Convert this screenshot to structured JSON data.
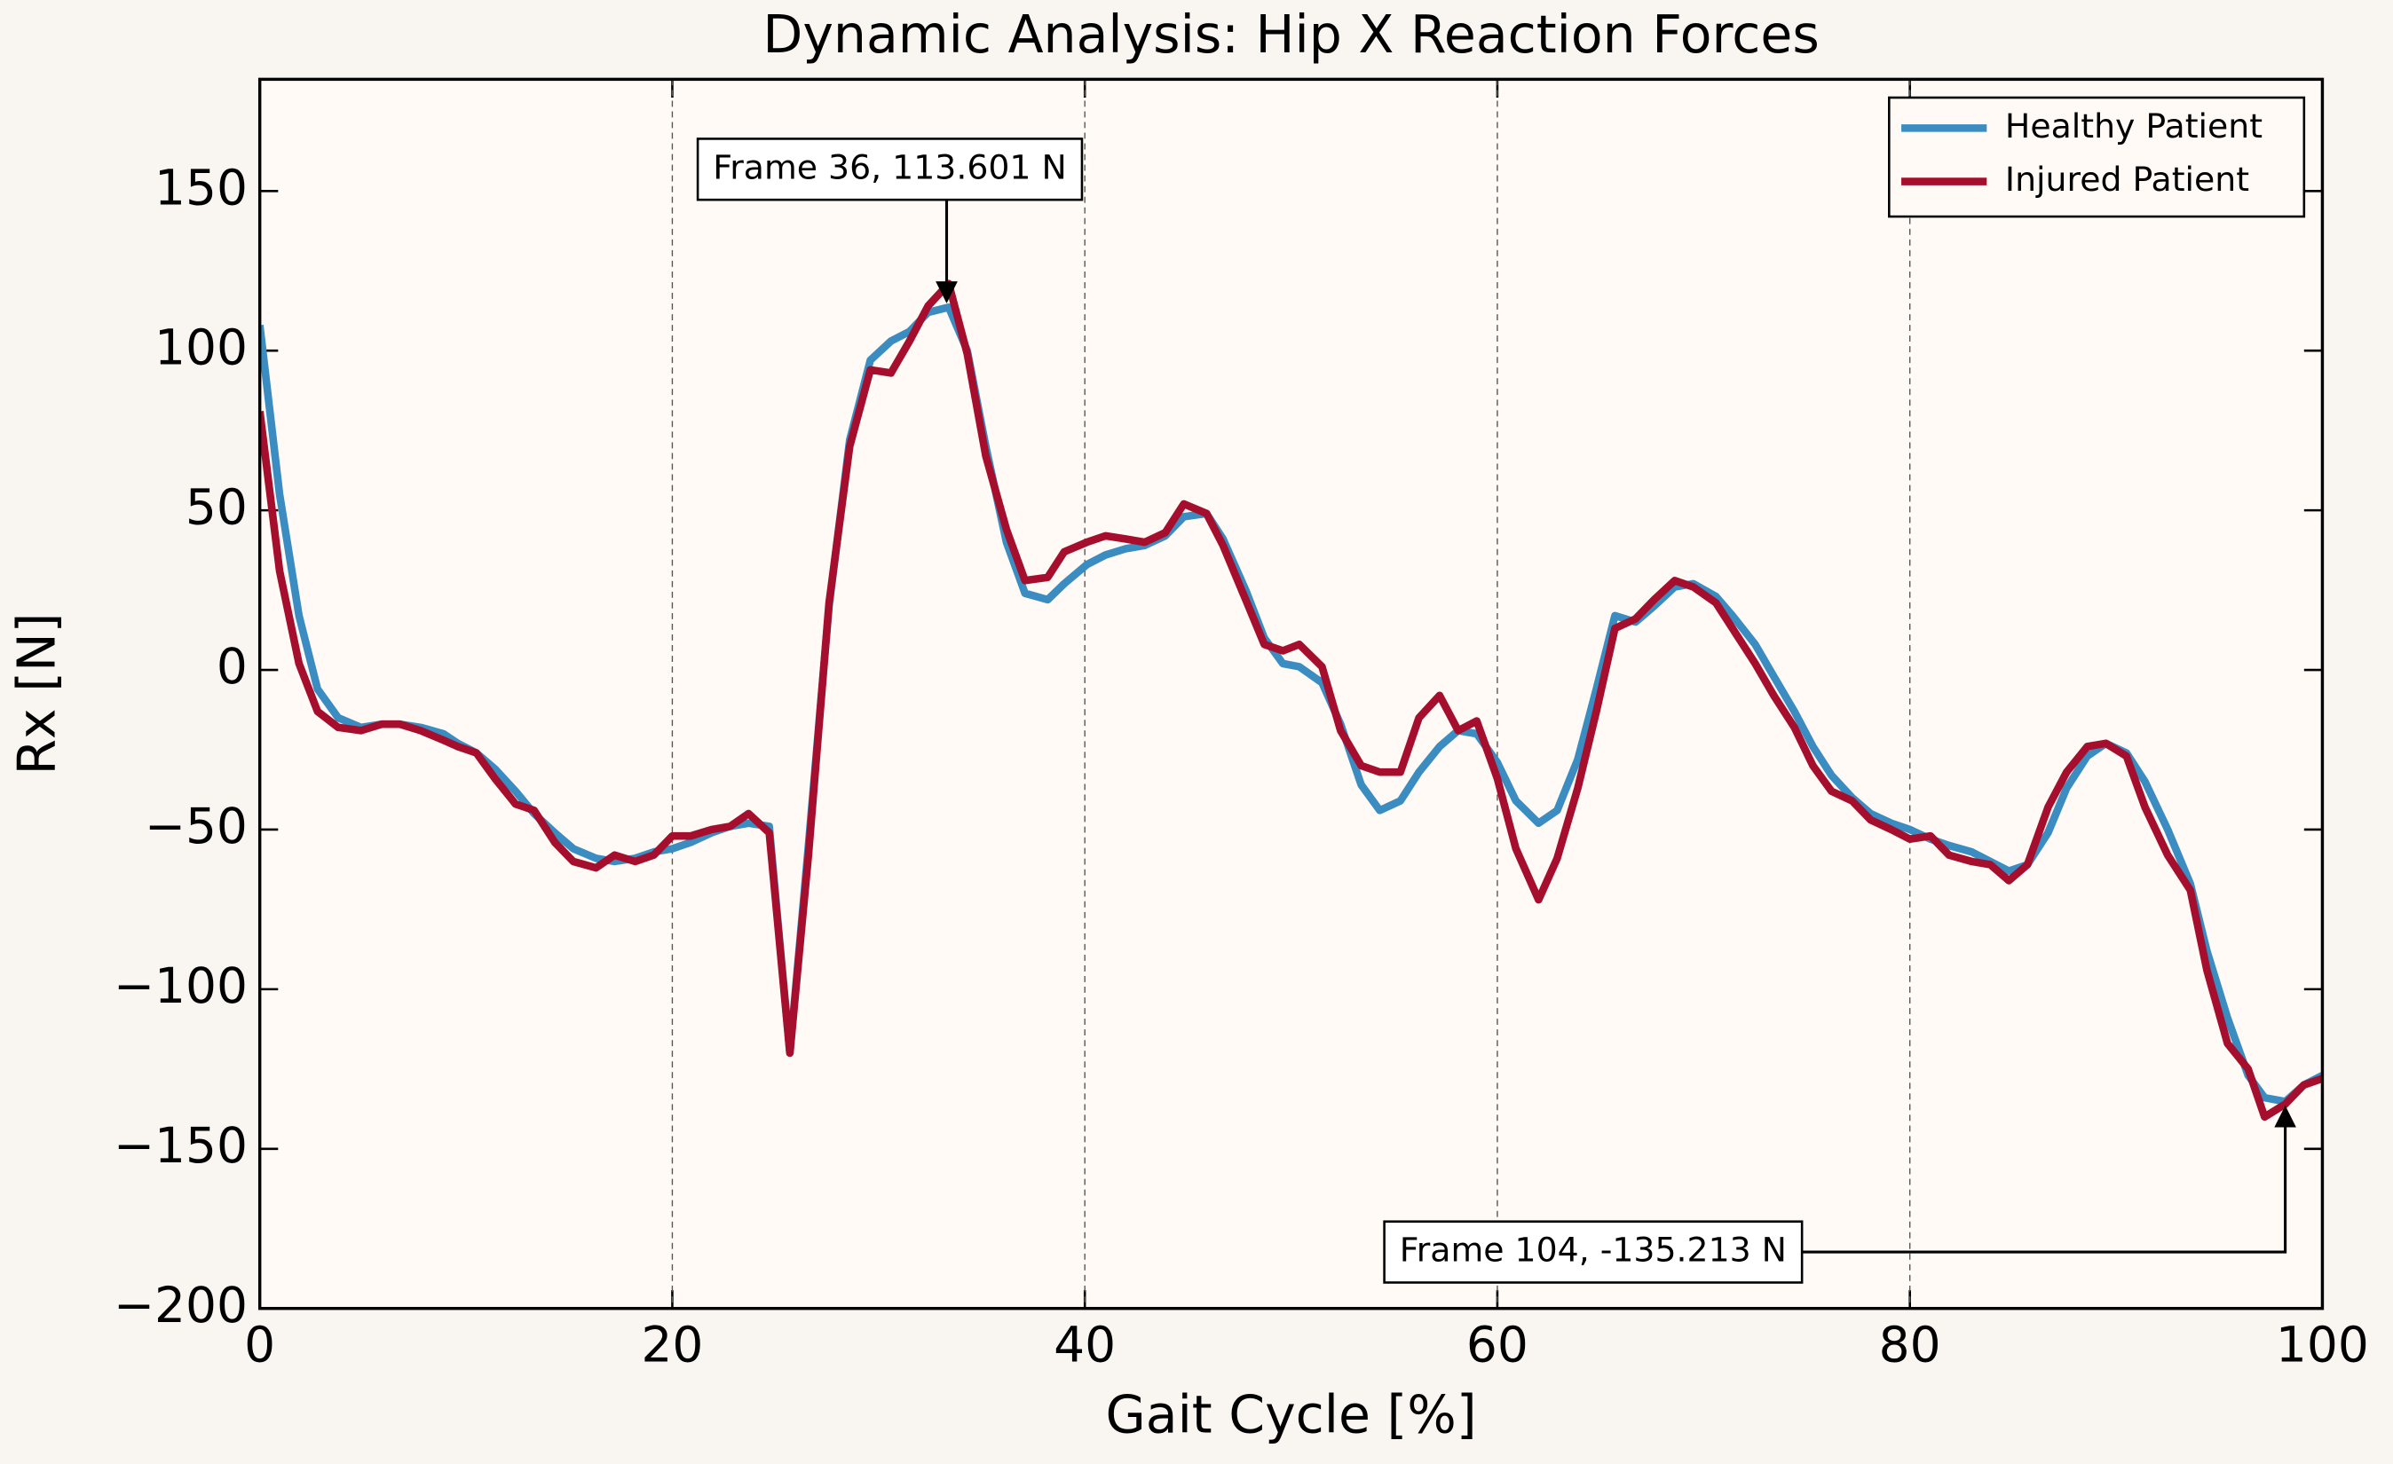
{
  "chart_data": {
    "type": "line",
    "title": "Dynamic Analysis: Hip X Reaction Forces",
    "xlabel": "Gait Cycle [%]",
    "ylabel": "Rx [N]",
    "x": [
      0,
      0.96,
      1.9,
      2.8,
      3.8,
      4.9,
      5.9,
      6.8,
      7.8,
      8.9,
      9.6,
      10.5,
      11.4,
      12.4,
      13.3,
      14.3,
      15.2,
      16.3,
      17.2,
      18.2,
      19.1,
      20,
      20.9,
      21.9,
      22.8,
      23.7,
      24.7,
      25.7,
      26.6,
      27.6,
      28.6,
      29.6,
      30.6,
      31.5,
      32.4,
      33.4,
      34.3,
      35.2,
      36.2,
      37.1,
      38.2,
      39,
      40.1,
      41,
      42,
      42.9,
      43.9,
      44.8,
      45.9,
      46.7,
      47.8,
      48.7,
      49.6,
      50.4,
      51.5,
      52.4,
      53.4,
      54.3,
      55.3,
      56.2,
      57.2,
      58.1,
      59,
      60,
      60.9,
      62,
      62.9,
      63.9,
      64.8,
      65.7,
      66.7,
      67.6,
      68.6,
      69.5,
      70.6,
      71.4,
      72.5,
      73.4,
      74.4,
      75.3,
      76.2,
      77.2,
      78.1,
      79.1,
      80,
      81,
      81.9,
      83,
      83.9,
      84.8,
      85.7,
      86.7,
      87.6,
      88.6,
      89.5,
      90.5,
      91.4,
      92.5,
      93.6,
      94.4,
      95.4,
      96.4,
      97.2,
      98.2,
      99.1,
      100
    ],
    "series": [
      {
        "name": "Healthy Patient",
        "color": "#3a8cc1",
        "values": [
          108,
          55,
          17,
          -6,
          -15,
          -18,
          -17,
          -17,
          -18,
          -20,
          -23,
          -26,
          -31,
          -38,
          -45,
          -51,
          -56,
          -59,
          -60,
          -59,
          -57,
          -56,
          -54,
          -51,
          -49,
          -48,
          -49,
          -120,
          -55,
          20,
          72,
          97,
          103,
          106,
          112,
          113.6,
          100,
          70,
          40,
          24,
          22,
          27,
          33,
          36,
          38,
          39,
          42,
          48,
          49,
          41,
          25,
          10,
          2,
          1,
          -4,
          -17,
          -36,
          -44,
          -41,
          -32,
          -24,
          -19,
          -20,
          -29,
          -41,
          -48,
          -44,
          -28,
          -6,
          17,
          15,
          20,
          26,
          27,
          23,
          17,
          8,
          -2,
          -13,
          -24,
          -33,
          -40,
          -45,
          -48,
          -50,
          -53,
          -55,
          -57,
          -60,
          -63,
          -61,
          -51,
          -37,
          -27,
          -23,
          -26,
          -35,
          -50,
          -67,
          -88,
          -109,
          -127,
          -134,
          -135.2,
          -130,
          -127
        ]
      },
      {
        "name": "Injured Patient",
        "color": "#a50f2d",
        "values": [
          81,
          31,
          2,
          -13,
          -18,
          -19,
          -17,
          -17,
          -19,
          -22,
          -24,
          -26,
          -34,
          -42,
          -44,
          -54,
          -60,
          -62,
          -58,
          -60,
          -58,
          -52,
          -52,
          -50,
          -49,
          -45,
          -51,
          -120,
          -58,
          21,
          70,
          94,
          93,
          103,
          114,
          121,
          99,
          67,
          44,
          28,
          29,
          37,
          40,
          42,
          41,
          40,
          43,
          52,
          49,
          39,
          22,
          8,
          6,
          8,
          1,
          -19,
          -30,
          -32,
          -32,
          -15,
          -8,
          -19,
          -16,
          -34,
          -56,
          -72,
          -59,
          -37,
          -13,
          13,
          16,
          22,
          28,
          26,
          21,
          13,
          2,
          -8,
          -18,
          -30,
          -38,
          -41,
          -47,
          -50,
          -53,
          -52,
          -58,
          -60,
          -61,
          -66,
          -61,
          -43,
          -32,
          -24,
          -23,
          -27,
          -43,
          -58,
          -69,
          -94,
          -117,
          -125,
          -140,
          -136,
          -130,
          -128
        ]
      }
    ],
    "xlim": [
      0,
      100
    ],
    "ylim": [
      -200,
      185
    ],
    "xticks": [
      0,
      20,
      40,
      60,
      80,
      100
    ],
    "yticks": [
      {
        "value": -200,
        "label": "−200"
      },
      {
        "value": -150,
        "label": "−150"
      },
      {
        "value": -100,
        "label": "−100"
      },
      {
        "value": -50,
        "label": "−50"
      },
      0,
      50,
      100,
      150
    ],
    "grid": "x",
    "legend": "upper right",
    "annotations": [
      {
        "text": "Frame 36, 113.601 N",
        "x": 33.3,
        "y": 113.601
      },
      {
        "text": "Frame 104, -135.213 N",
        "x": 98.2,
        "y": -135.213
      }
    ]
  }
}
